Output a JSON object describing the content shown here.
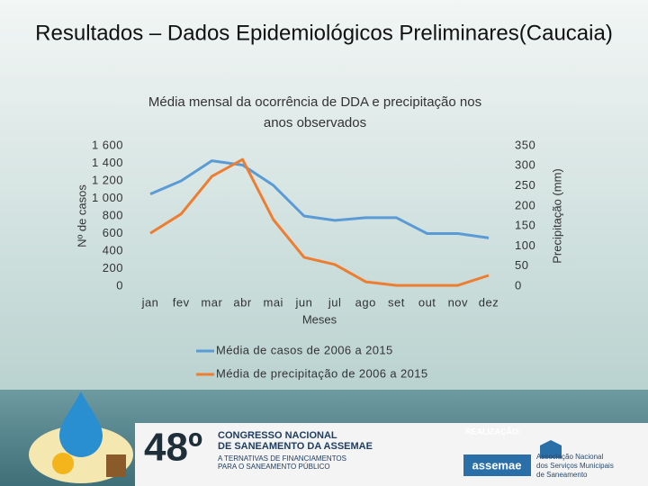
{
  "slide": {
    "title": "Resultados – Dados Epidemiológicos Preliminares(Caucaia)",
    "footer": {
      "edition": "48º",
      "event_line1": "CONGRESSO NACIONAL",
      "event_line2": "DE SANEAMENTO DA ASSEMAE",
      "theme_line1": "A TERNATIVAS DE FINANCIAMENTOS",
      "theme_line2": "PARA O SANEAMENTO PÚBLICO",
      "organizer_label": "REALIZAÇÃO:",
      "organizer_logo": "assemae",
      "organizer_line1": "Associação Nacional",
      "organizer_line2": "dos Serviços Municipais",
      "organizer_line3": "de Saneamento"
    }
  },
  "chart_data": {
    "type": "line",
    "title": "Média mensal da ocorrência de DDA e precipitação nos anos observados",
    "x_label": "Meses",
    "y_label": "Nº de casos",
    "y2_label": "Precipitação (mm)",
    "categories": [
      "jan",
      "fev",
      "mar",
      "abr",
      "mai",
      "jun",
      "jul",
      "ago",
      "set",
      "out",
      "nov",
      "dez"
    ],
    "series": [
      {
        "name": "Média de casos de 2006 a 2015",
        "color": "#5b9bd5",
        "values": [
          1050,
          1200,
          1430,
          1380,
          1150,
          800,
          750,
          780,
          780,
          600,
          600,
          550
        ]
      },
      {
        "name": "Média de precipitação de 2006 a 2015",
        "color": "#ed7d31",
        "axis": "y2",
        "values": [
          132,
          180,
          274,
          316,
          166,
          72,
          54,
          11,
          2,
          2,
          2,
          27
        ]
      }
    ],
    "ylim": [
      0,
      1600
    ],
    "yticks": [
      0,
      200,
      400,
      600,
      800,
      {
        "value": 1000,
        "label": "1 000"
      },
      {
        "value": 1200,
        "label": "1 200"
      },
      {
        "value": 1400,
        "label": "1 400"
      },
      {
        "value": 1600,
        "label": "1 600"
      }
    ],
    "y2lim": [
      0,
      350
    ],
    "y2ticks": [
      0,
      50,
      100,
      150,
      200,
      250,
      300,
      350
    ],
    "legend": "bottom",
    "grid": false
  }
}
